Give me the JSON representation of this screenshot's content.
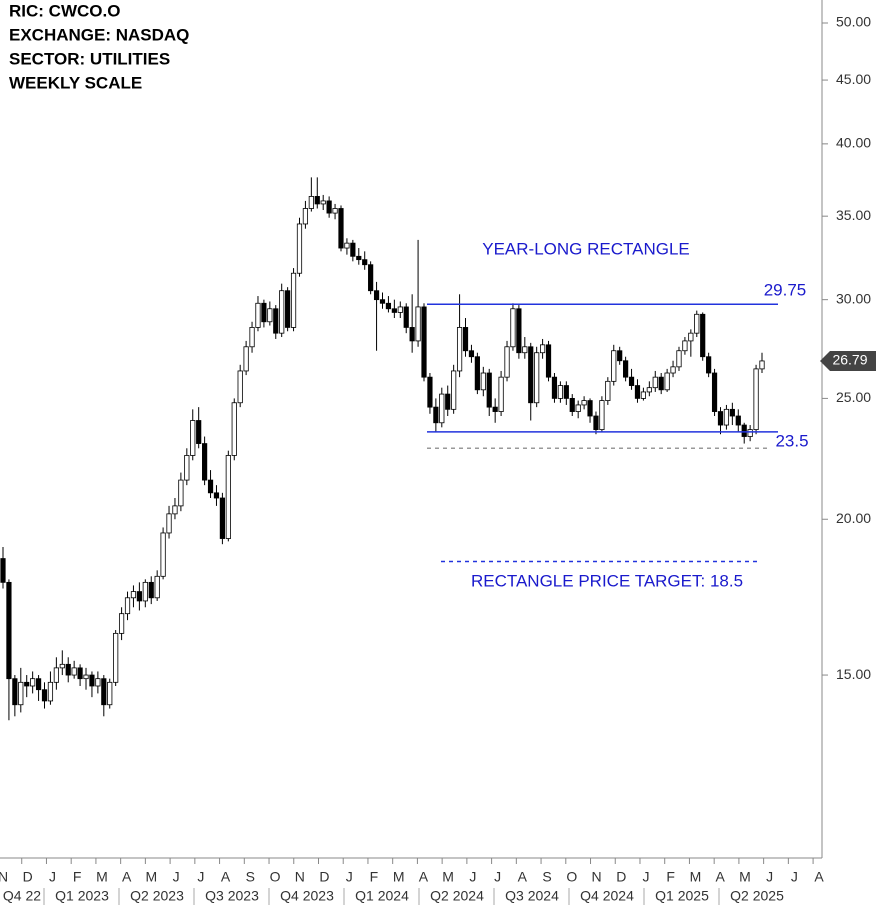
{
  "chart_data": {
    "type": "candlestick",
    "header": [
      "RIC:  CWCO.O",
      "EXCHANGE: NASDAQ",
      "SECTOR:  UTILITIES",
      "WEEKLY SCALE"
    ],
    "log_scale": true,
    "ylim": [
      10.7,
      52.17
    ],
    "yticks": [
      {
        "value": 15,
        "label": "15.00"
      },
      {
        "value": 20,
        "label": "20.00"
      },
      {
        "value": 25,
        "label": "25.00"
      },
      {
        "value": 30,
        "label": "30.00"
      },
      {
        "value": 35,
        "label": "35.00"
      },
      {
        "value": 40,
        "label": "40.00"
      },
      {
        "value": 45,
        "label": "45.00"
      },
      {
        "value": 50,
        "label": "50.00"
      }
    ],
    "months": [
      "N",
      "D",
      "J",
      "F",
      "M",
      "A",
      "M",
      "J",
      "J",
      "A",
      "S",
      "O",
      "N",
      "D",
      "J",
      "F",
      "M",
      "A",
      "M",
      "J",
      "J",
      "A",
      "S",
      "O",
      "N",
      "D",
      "J",
      "F",
      "M",
      "A",
      "M",
      "J",
      "J",
      "A"
    ],
    "quarters": [
      "Q4 22",
      "Q1 2023",
      "Q2 2023",
      "Q3 2023",
      "Q4 2023",
      "Q1 2024",
      "Q2 2024",
      "Q3 2024",
      "Q4 2024",
      "Q1 2025",
      "Q2 2025"
    ],
    "up_color": "#ffffff",
    "down_color": "#000000",
    "candles": [
      [
        18.6,
        19.0,
        17.6,
        17.8
      ],
      [
        17.8,
        17.9,
        13.8,
        14.9
      ],
      [
        14.9,
        15.0,
        13.9,
        14.2
      ],
      [
        14.2,
        15.2,
        14.0,
        14.8
      ],
      [
        14.8,
        15.0,
        14.4,
        14.7
      ],
      [
        14.7,
        15.1,
        14.5,
        14.9
      ],
      [
        14.9,
        15.0,
        14.3,
        14.6
      ],
      [
        14.6,
        14.8,
        14.1,
        14.3
      ],
      [
        14.3,
        15.1,
        14.2,
        14.8
      ],
      [
        14.8,
        15.5,
        14.6,
        15.2
      ],
      [
        15.2,
        15.7,
        15.0,
        15.3
      ],
      [
        15.3,
        15.5,
        14.8,
        15.0
      ],
      [
        15.0,
        15.4,
        14.9,
        15.2
      ],
      [
        15.2,
        15.3,
        14.7,
        14.9
      ],
      [
        14.9,
        15.2,
        14.6,
        15.0
      ],
      [
        15.0,
        15.1,
        14.4,
        14.7
      ],
      [
        14.7,
        15.1,
        14.5,
        14.9
      ],
      [
        14.9,
        15.0,
        13.9,
        14.2
      ],
      [
        14.2,
        14.9,
        14.1,
        14.8
      ],
      [
        14.8,
        16.3,
        14.7,
        16.2
      ],
      [
        16.2,
        17.0,
        16.0,
        16.8
      ],
      [
        16.8,
        17.5,
        16.6,
        17.3
      ],
      [
        17.3,
        17.7,
        17.0,
        17.5
      ],
      [
        17.5,
        17.8,
        16.9,
        17.2
      ],
      [
        17.2,
        17.9,
        17.0,
        17.8
      ],
      [
        17.8,
        18.0,
        17.1,
        17.3
      ],
      [
        17.3,
        18.2,
        17.2,
        18.0
      ],
      [
        18.0,
        19.7,
        17.9,
        19.5
      ],
      [
        19.5,
        20.5,
        19.3,
        20.2
      ],
      [
        20.2,
        20.8,
        20.0,
        20.5
      ],
      [
        20.5,
        21.8,
        20.3,
        21.5
      ],
      [
        21.5,
        22.8,
        21.3,
        22.5
      ],
      [
        22.5,
        24.5,
        22.3,
        24.0
      ],
      [
        24.0,
        24.6,
        22.8,
        23.0
      ],
      [
        23.0,
        23.3,
        21.3,
        21.5
      ],
      [
        21.5,
        21.9,
        20.8,
        21.0
      ],
      [
        21.0,
        21.3,
        20.5,
        20.8
      ],
      [
        20.8,
        21.0,
        19.1,
        19.3
      ],
      [
        19.3,
        22.7,
        19.2,
        22.5
      ],
      [
        22.5,
        25.0,
        22.3,
        24.8
      ],
      [
        24.8,
        26.6,
        24.6,
        26.3
      ],
      [
        26.3,
        27.8,
        26.1,
        27.5
      ],
      [
        27.5,
        28.8,
        27.2,
        28.5
      ],
      [
        28.5,
        30.2,
        28.3,
        29.8
      ],
      [
        29.8,
        30.0,
        28.5,
        28.8
      ],
      [
        28.8,
        29.9,
        28.6,
        29.5
      ],
      [
        29.5,
        29.7,
        27.9,
        28.2
      ],
      [
        28.2,
        30.9,
        28.0,
        30.5
      ],
      [
        30.5,
        30.7,
        28.3,
        28.5
      ],
      [
        28.5,
        31.8,
        28.3,
        31.5
      ],
      [
        31.5,
        34.9,
        31.3,
        34.5
      ],
      [
        34.5,
        36.0,
        34.2,
        35.5
      ],
      [
        35.5,
        37.6,
        35.3,
        36.3
      ],
      [
        36.3,
        37.6,
        35.5,
        35.8
      ],
      [
        35.8,
        36.4,
        35.4,
        36.0
      ],
      [
        36.0,
        36.3,
        34.9,
        35.2
      ],
      [
        35.2,
        35.8,
        34.8,
        35.5
      ],
      [
        35.5,
        35.7,
        32.8,
        33.0
      ],
      [
        33.0,
        33.6,
        32.6,
        33.3
      ],
      [
        33.3,
        33.5,
        32.2,
        32.5
      ],
      [
        32.5,
        33.0,
        32.0,
        32.3
      ],
      [
        32.3,
        32.8,
        31.7,
        32.0
      ],
      [
        32.0,
        32.2,
        30.3,
        30.5
      ],
      [
        30.5,
        31.0,
        27.3,
        30.0
      ],
      [
        30.0,
        30.4,
        29.5,
        29.8
      ],
      [
        29.8,
        30.2,
        29.3,
        29.5
      ],
      [
        29.5,
        30.0,
        29.0,
        29.3
      ],
      [
        29.3,
        29.9,
        29.0,
        29.6
      ],
      [
        29.6,
        29.8,
        28.2,
        28.5
      ],
      [
        28.5,
        30.3,
        27.2,
        27.8
      ],
      [
        27.8,
        33.5,
        27.5,
        29.6
      ],
      [
        29.6,
        29.8,
        25.8,
        26.0
      ],
      [
        26.0,
        26.2,
        24.3,
        24.6
      ],
      [
        24.6,
        25.0,
        23.5,
        23.9
      ],
      [
        23.9,
        25.5,
        23.7,
        25.2
      ],
      [
        25.2,
        25.6,
        24.2,
        24.5
      ],
      [
        24.5,
        26.6,
        24.3,
        26.3
      ],
      [
        26.3,
        30.3,
        26.0,
        28.5
      ],
      [
        28.5,
        29.0,
        27.0,
        27.3
      ],
      [
        27.3,
        27.6,
        26.7,
        27.0
      ],
      [
        27.0,
        27.2,
        25.2,
        25.4
      ],
      [
        25.4,
        26.5,
        25.1,
        26.2
      ],
      [
        26.2,
        26.4,
        24.2,
        24.6
      ],
      [
        24.6,
        25.0,
        23.9,
        24.4
      ],
      [
        24.4,
        26.3,
        24.2,
        26.0
      ],
      [
        26.0,
        27.8,
        25.8,
        27.5
      ],
      [
        27.5,
        29.8,
        27.3,
        29.5
      ],
      [
        29.5,
        29.7,
        26.9,
        27.2
      ],
      [
        27.2,
        28.0,
        26.9,
        27.5
      ],
      [
        27.5,
        27.7,
        24.0,
        24.8
      ],
      [
        24.8,
        27.5,
        24.6,
        27.2
      ],
      [
        27.2,
        27.9,
        26.9,
        27.6
      ],
      [
        27.6,
        27.8,
        25.8,
        26.0
      ],
      [
        26.0,
        26.2,
        24.8,
        25.0
      ],
      [
        25.0,
        25.8,
        24.8,
        25.6
      ],
      [
        25.6,
        25.8,
        24.7,
        25.0
      ],
      [
        25.0,
        25.2,
        24.2,
        24.4
      ],
      [
        24.4,
        24.9,
        24.1,
        24.7
      ],
      [
        24.7,
        25.1,
        24.5,
        24.9
      ],
      [
        24.9,
        25.0,
        23.9,
        24.2
      ],
      [
        24.2,
        24.4,
        23.4,
        23.6
      ],
      [
        23.6,
        25.1,
        23.5,
        24.9
      ],
      [
        24.9,
        26.0,
        24.7,
        25.8
      ],
      [
        25.8,
        27.6,
        25.6,
        27.3
      ],
      [
        27.3,
        27.5,
        26.6,
        26.8
      ],
      [
        26.8,
        27.0,
        25.8,
        26.0
      ],
      [
        26.0,
        26.4,
        25.4,
        25.6
      ],
      [
        25.6,
        25.9,
        24.8,
        25.0
      ],
      [
        25.0,
        25.5,
        24.9,
        25.3
      ],
      [
        25.3,
        25.8,
        25.1,
        25.5
      ],
      [
        25.5,
        26.3,
        25.3,
        26.0
      ],
      [
        26.0,
        26.2,
        25.2,
        25.4
      ],
      [
        25.4,
        26.4,
        25.3,
        26.2
      ],
      [
        26.2,
        26.8,
        26.0,
        26.5
      ],
      [
        26.5,
        27.5,
        26.3,
        27.3
      ],
      [
        27.3,
        28.0,
        27.1,
        27.8
      ],
      [
        27.8,
        28.4,
        27.0,
        28.2
      ],
      [
        28.2,
        29.4,
        28.0,
        29.2
      ],
      [
        29.2,
        29.3,
        26.8,
        27.0
      ],
      [
        27.0,
        27.2,
        26.0,
        26.2
      ],
      [
        26.2,
        26.4,
        24.2,
        24.4
      ],
      [
        24.4,
        24.6,
        23.4,
        23.8
      ],
      [
        23.8,
        24.7,
        23.6,
        24.5
      ],
      [
        24.5,
        24.8,
        23.8,
        24.2
      ],
      [
        24.2,
        24.5,
        23.5,
        23.8
      ],
      [
        23.8,
        23.9,
        23.0,
        23.3
      ],
      [
        23.3,
        23.8,
        23.1,
        23.6
      ],
      [
        23.6,
        26.6,
        23.4,
        26.4
      ],
      [
        26.4,
        27.2,
        26.2,
        26.79
      ]
    ],
    "hlines": [
      {
        "value": 29.75,
        "color": "#2233dd",
        "dashed": false
      },
      {
        "value": 23.5,
        "color": "#2233dd",
        "dashed": false
      },
      {
        "value": 22.8,
        "color": "#999999",
        "dashed": true
      },
      {
        "value": 18.5,
        "color": "#2233dd",
        "dashed": true
      }
    ],
    "annotations": [
      "YEAR-LONG RECTANGLE",
      "RECTANGLE PRICE TARGET: 18.5"
    ]
  }
}
